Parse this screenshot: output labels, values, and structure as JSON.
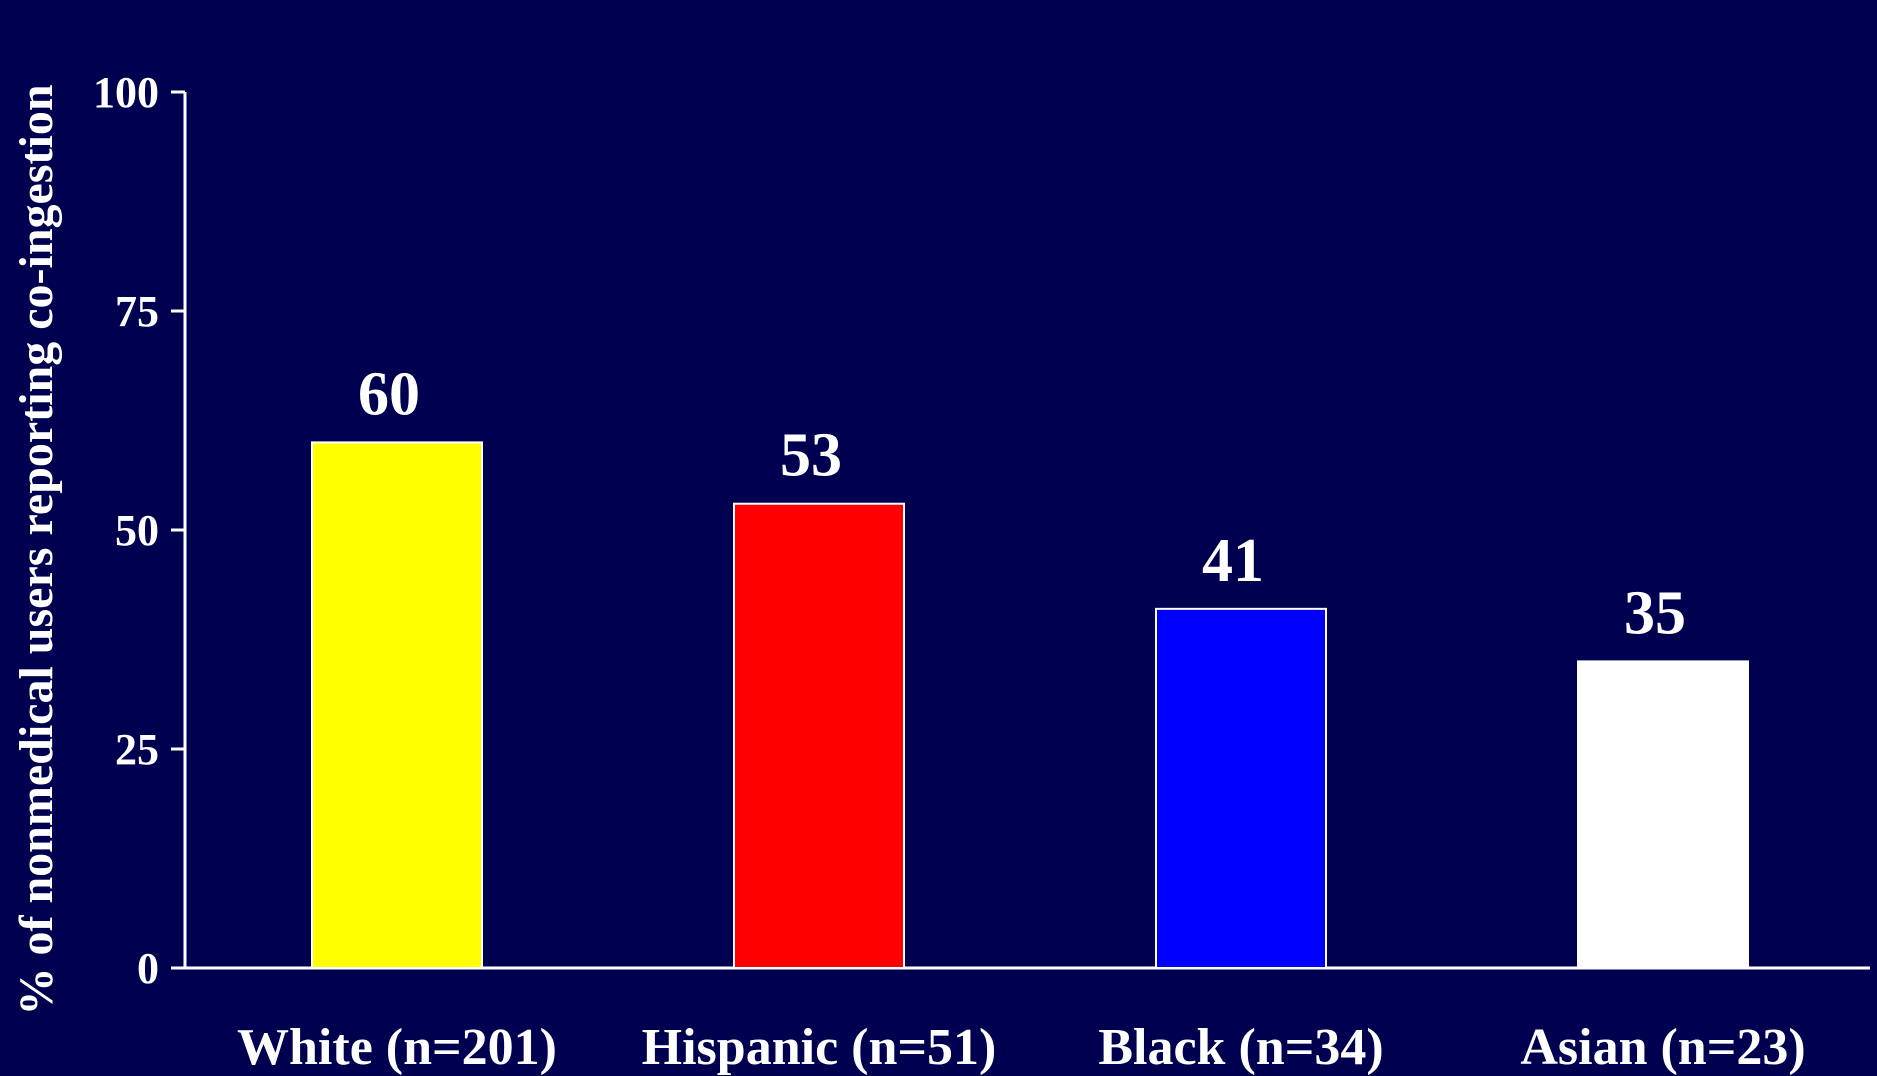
{
  "colors": {
    "background": "#000050",
    "axis": "#ffffff",
    "text": "#ffffff"
  },
  "chart_data": {
    "type": "bar",
    "title": "",
    "xlabel": "",
    "ylabel": "% of nonmedical users reporting co-ingestion",
    "ylim": [
      0,
      100
    ],
    "yticks": [
      0,
      25,
      50,
      75,
      100
    ],
    "grid": false,
    "legend": "none",
    "categories": [
      "White (n=201)",
      "Hispanic (n=51)",
      "Black (n=34)",
      "Asian (n=23)"
    ],
    "values": [
      60,
      53,
      41,
      35
    ],
    "data_labels": [
      "60",
      "53",
      "41",
      "35"
    ],
    "bar_colors": [
      "#ffff00",
      "#ff0000",
      "#0000ff",
      "#ffffff"
    ]
  }
}
